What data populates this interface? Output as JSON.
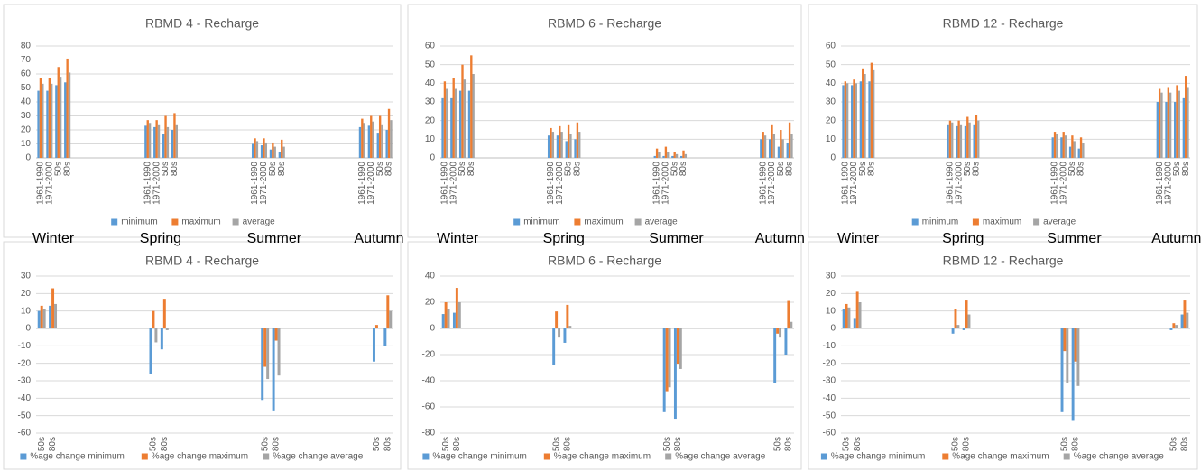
{
  "chart_data": [
    {
      "type": "bar",
      "title": "RBMD 4 - Recharge",
      "categories": [
        "1961-1990",
        "1971-2000",
        "50s",
        "80s",
        "1961-1990",
        "1971-2000",
        "50s",
        "80s",
        "1961-1990",
        "1971-2000",
        "50s",
        "80s",
        "1961-1990",
        "1971-2000",
        "50s",
        "80s"
      ],
      "groups": [
        "Winter",
        "Spring",
        "Summer",
        "Autumn"
      ],
      "series": [
        {
          "name": "minimum",
          "color": "#5b9bd5",
          "values": [
            48,
            48,
            52,
            54,
            23,
            22,
            17,
            20,
            10,
            9,
            6,
            4,
            22,
            23,
            18,
            20
          ]
        },
        {
          "name": "maximum",
          "color": "#ed7d31",
          "values": [
            57,
            57,
            65,
            71,
            27,
            27,
            30,
            32,
            14,
            14,
            11,
            13,
            28,
            30,
            30,
            35
          ]
        },
        {
          "name": "average",
          "color": "#a5a5a5",
          "values": [
            53,
            53,
            58,
            61,
            25,
            24,
            22,
            24,
            12,
            11,
            8,
            8,
            25,
            26,
            24,
            27
          ]
        }
      ],
      "ylim": [
        0,
        80
      ],
      "yticks": [
        0,
        10,
        20,
        30,
        40,
        50,
        60,
        70,
        80
      ],
      "grid": true,
      "legend": "bottom"
    },
    {
      "type": "bar",
      "title": "RBMD 6 - Recharge",
      "categories": [
        "1961-1990",
        "1971-2000",
        "50s",
        "80s",
        "1961-1990",
        "1971-2000",
        "50s",
        "80s",
        "1961-1990",
        "1971-2000",
        "50s",
        "80s",
        "1961-1990",
        "1971-2000",
        "50s",
        "80s"
      ],
      "groups": [
        "Winter",
        "Spring",
        "Summer",
        "Autumn"
      ],
      "series": [
        {
          "name": "minimum",
          "color": "#5b9bd5",
          "values": [
            32,
            32,
            36,
            36,
            12,
            12,
            9,
            10,
            1,
            1,
            1,
            1,
            10,
            10,
            6,
            8
          ]
        },
        {
          "name": "maximum",
          "color": "#ed7d31",
          "values": [
            41,
            43,
            50,
            55,
            16,
            17,
            18,
            19,
            5,
            6,
            3,
            4,
            14,
            18,
            15,
            19
          ]
        },
        {
          "name": "average",
          "color": "#a5a5a5",
          "values": [
            37,
            37,
            42,
            45,
            14,
            14,
            13,
            14,
            3,
            3,
            2,
            2,
            12,
            13,
            10,
            13
          ]
        }
      ],
      "ylim": [
        0,
        60
      ],
      "yticks": [
        0,
        10,
        20,
        30,
        40,
        50,
        60
      ],
      "grid": true,
      "legend": "bottom"
    },
    {
      "type": "bar",
      "title": "RBMD 12 - Recharge",
      "categories": [
        "1961-1990",
        "1971-2000",
        "50s",
        "80s",
        "1961-1990",
        "1971-2000",
        "50s",
        "80s",
        "1961-1990",
        "1971-2000",
        "50s",
        "80s",
        "1961-1990",
        "1971-2000",
        "50s",
        "80s"
      ],
      "groups": [
        "Winter",
        "Spring",
        "Summer",
        "Autumn"
      ],
      "series": [
        {
          "name": "minimum",
          "color": "#5b9bd5",
          "values": [
            39,
            39,
            41,
            41,
            18,
            17,
            17,
            18,
            11,
            11,
            6,
            5,
            30,
            30,
            30,
            32
          ]
        },
        {
          "name": "maximum",
          "color": "#ed7d31",
          "values": [
            41,
            42,
            48,
            51,
            20,
            20,
            22,
            23,
            14,
            14,
            12,
            11,
            37,
            38,
            39,
            44
          ]
        },
        {
          "name": "average",
          "color": "#a5a5a5",
          "values": [
            40,
            40,
            45,
            47,
            19,
            18,
            19,
            20,
            13,
            12,
            9,
            8,
            35,
            35,
            36,
            38
          ]
        }
      ],
      "ylim": [
        0,
        60
      ],
      "yticks": [
        0,
        10,
        20,
        30,
        40,
        50,
        60
      ],
      "grid": true,
      "legend": "bottom"
    },
    {
      "type": "bar",
      "title": "RBMD 4 - Recharge",
      "categories": [
        "50s",
        "80s",
        "50s",
        "80s",
        "50s",
        "80s",
        "50s",
        "80s"
      ],
      "series": [
        {
          "name": "%age change minimum",
          "color": "#5b9bd5",
          "values": [
            10,
            13,
            -26,
            -12,
            -41,
            -47,
            -19,
            -10
          ]
        },
        {
          "name": "%age change maximum",
          "color": "#ed7d31",
          "values": [
            13,
            23,
            10,
            17,
            -22,
            -7,
            2,
            19
          ]
        },
        {
          "name": "%age change average",
          "color": "#a5a5a5",
          "values": [
            11,
            14,
            -8,
            -1,
            -29,
            -27,
            0,
            10
          ]
        }
      ],
      "ylim": [
        -60,
        30
      ],
      "yticks": [
        30,
        20,
        10,
        0,
        -10,
        -20,
        -30,
        -40,
        -50,
        -60
      ],
      "grid": true,
      "legend": "bottom"
    },
    {
      "type": "bar",
      "title": "RBMD 6 - Recharge",
      "categories": [
        "50s",
        "80s",
        "50s",
        "80s",
        "50s",
        "80s",
        "50s",
        "80s"
      ],
      "series": [
        {
          "name": "%age change minimum",
          "color": "#5b9bd5",
          "values": [
            11,
            12,
            -28,
            -11,
            -64,
            -69,
            -42,
            -20
          ]
        },
        {
          "name": "%age change maximum",
          "color": "#ed7d31",
          "values": [
            20,
            31,
            13,
            18,
            -48,
            -27,
            -4,
            21
          ]
        },
        {
          "name": "%age change average",
          "color": "#a5a5a5",
          "values": [
            15,
            20,
            -7,
            2,
            -45,
            -31,
            -7,
            5
          ]
        }
      ],
      "ylim": [
        -80,
        40
      ],
      "yticks": [
        40,
        20,
        0,
        -20,
        -40,
        -60,
        -80
      ],
      "grid": true,
      "legend": "bottom"
    },
    {
      "type": "bar",
      "title": "RBMD 12 - Recharge",
      "categories": [
        "50s",
        "80s",
        "50s",
        "80s",
        "50s",
        "80s",
        "50s",
        "80s"
      ],
      "series": [
        {
          "name": "%age change minimum",
          "color": "#5b9bd5",
          "values": [
            11,
            6,
            -3,
            -1,
            -48,
            -53,
            -1,
            8
          ]
        },
        {
          "name": "%age change maximum",
          "color": "#ed7d31",
          "values": [
            14,
            21,
            11,
            16,
            -13,
            -19,
            3,
            16
          ]
        },
        {
          "name": "%age change average",
          "color": "#a5a5a5",
          "values": [
            12,
            15,
            2,
            8,
            -31,
            -33,
            2,
            9
          ]
        }
      ],
      "ylim": [
        -60,
        30
      ],
      "yticks": [
        30,
        20,
        10,
        0,
        -10,
        -20,
        -30,
        -40,
        -50,
        -60
      ],
      "grid": true,
      "legend": "bottom"
    }
  ]
}
